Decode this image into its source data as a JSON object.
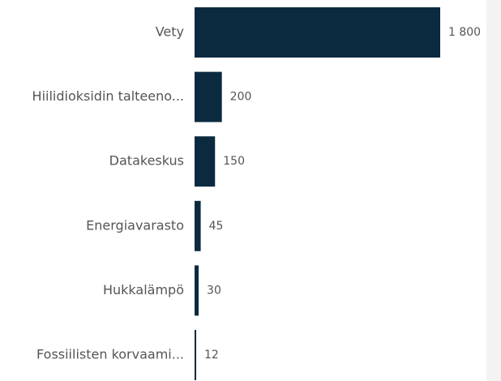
{
  "chart_data": {
    "type": "bar",
    "orientation": "horizontal",
    "categories": [
      "Vety",
      "Hiilidioksidin talteeno...",
      "Datakeskus",
      "Energiavarasto",
      "Hukkalämpö",
      "Fossiilisten korvaami..."
    ],
    "values": [
      1800,
      200,
      150,
      45,
      30,
      12
    ],
    "value_labels": [
      "1 800",
      "200",
      "150",
      "45",
      "30",
      "12"
    ],
    "color": "#0b2a3f"
  }
}
